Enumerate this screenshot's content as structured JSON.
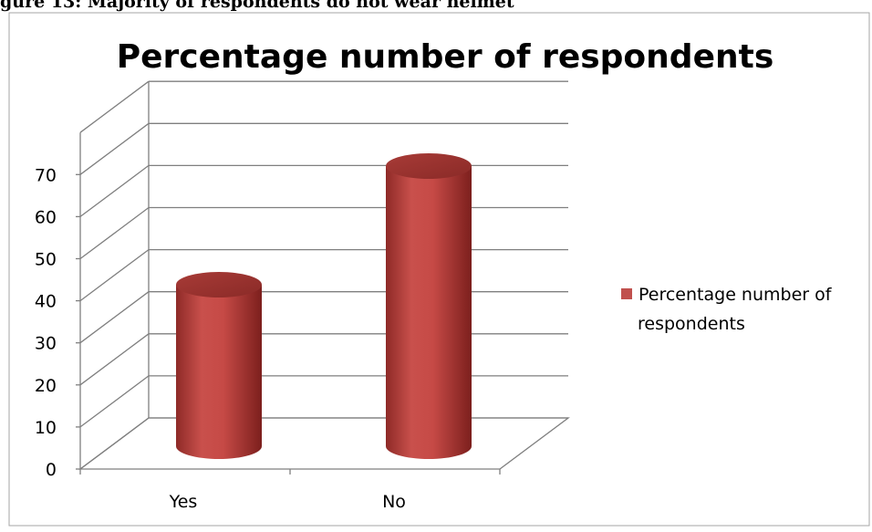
{
  "page_caption": "gure 13: Majority of respondents do not wear helmet",
  "chart_data": {
    "type": "bar",
    "style": "3d-cylinder",
    "title": "Percentage number of respondents",
    "categories": [
      "Yes",
      "No"
    ],
    "series": [
      {
        "name": "Percentage number of respondents",
        "values": [
          39,
          67
        ],
        "color": "#c0504d"
      }
    ],
    "ylim": [
      0,
      70
    ],
    "yticks": [
      0,
      10,
      20,
      30,
      40,
      50,
      60,
      70
    ],
    "ytick_labels": [
      "0",
      "10",
      "20",
      "30",
      "40",
      "50",
      "60",
      "70"
    ],
    "grid": true,
    "legend": "right"
  }
}
